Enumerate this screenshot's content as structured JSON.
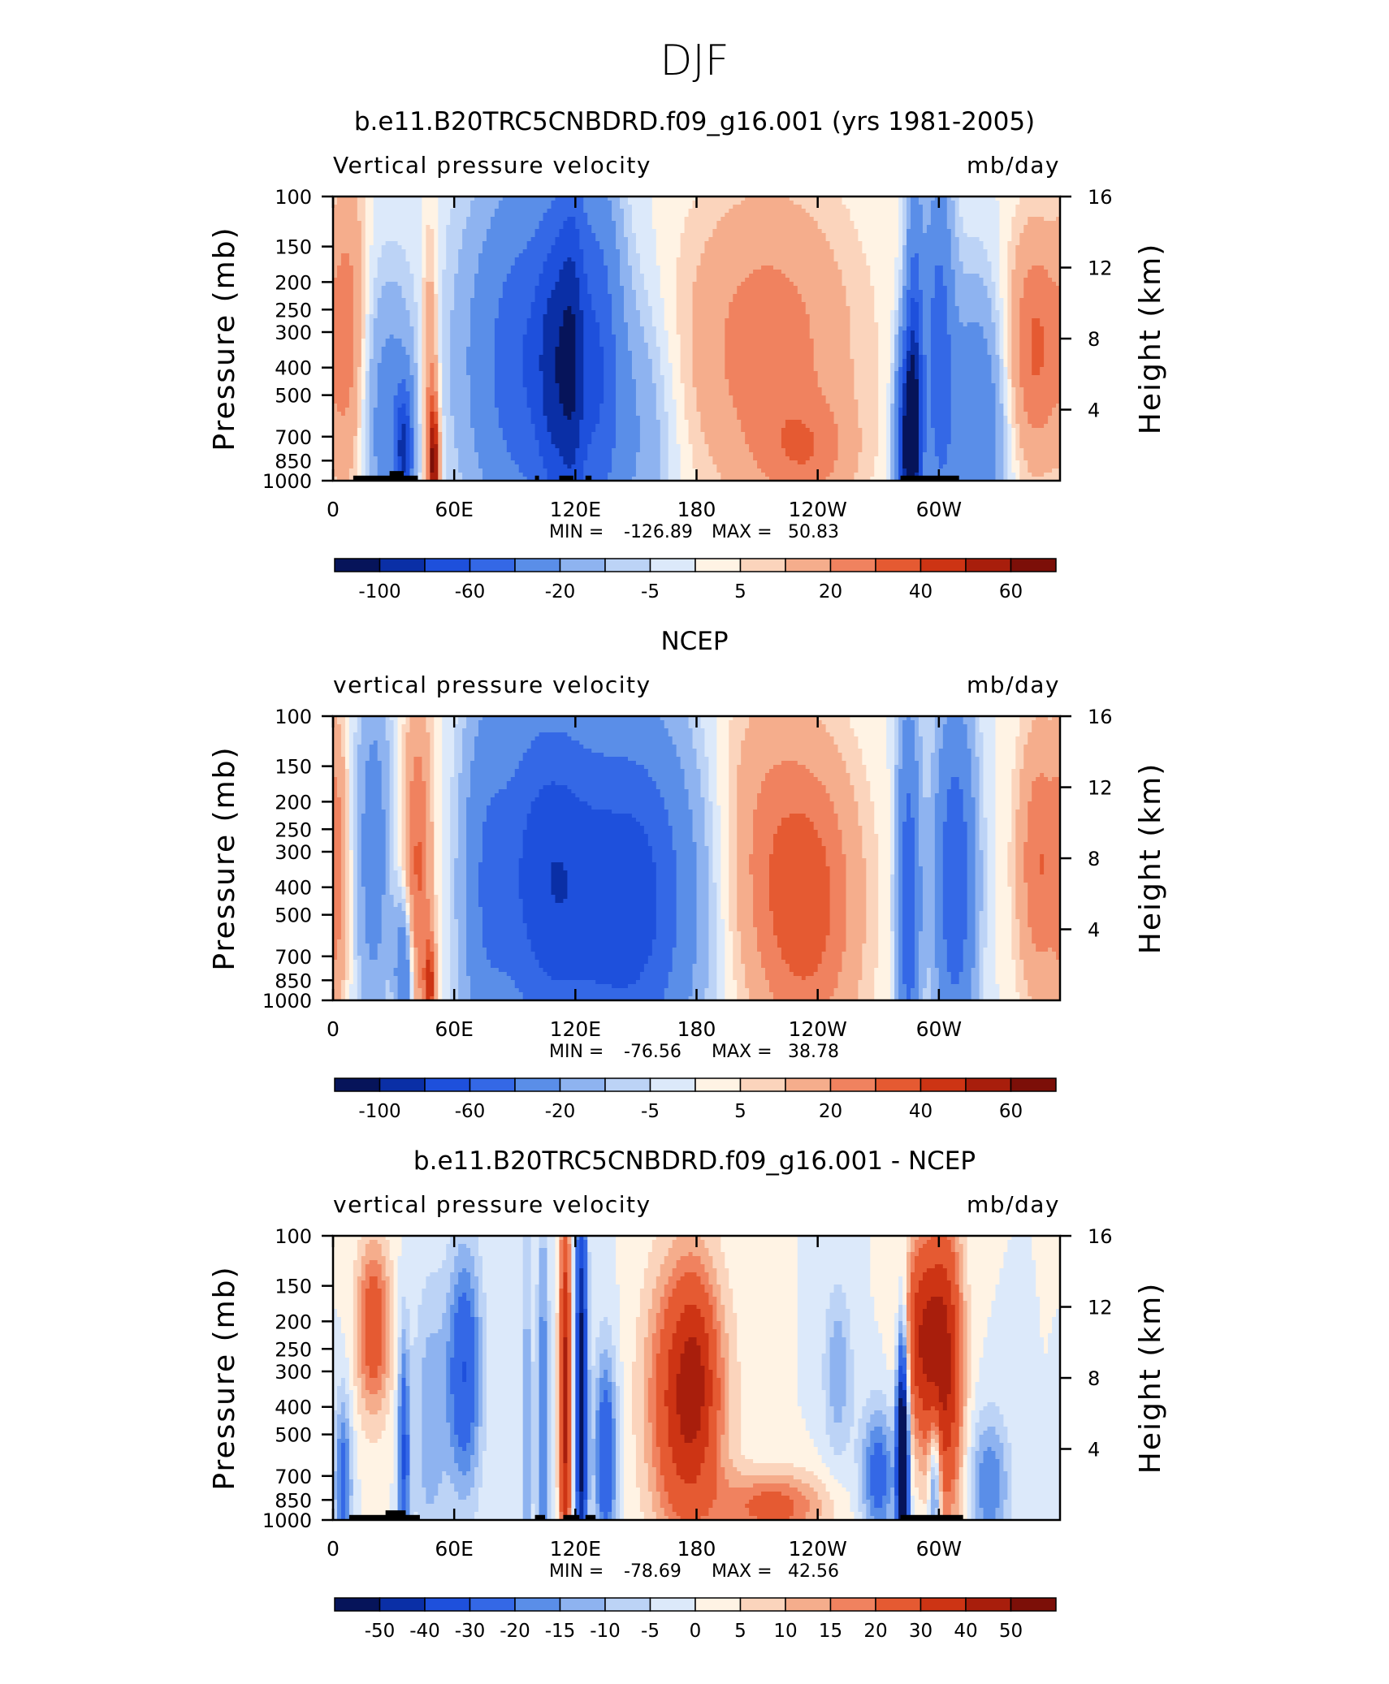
{
  "figure": {
    "title": "DJF"
  },
  "colors": {
    "scale": [
      "#06145a",
      "#0a2fa6",
      "#1e50dc",
      "#3468e6",
      "#5a8ee8",
      "#8eb3f0",
      "#bcd3f6",
      "#dce9fa",
      "#fff3e4",
      "#fbd4bc",
      "#f5ad8c",
      "#f0825f",
      "#e55a32",
      "#cd3414",
      "#a81e0c",
      "#7c0f08"
    ],
    "topography": "#000000"
  },
  "chart_data": [
    {
      "type": "heatmap",
      "title": "b.e11.B20TRC5CNBDRD.f09_g16.001 (yrs 1981-2005)",
      "variable_label": "Vertical pressure velocity",
      "units_label": "mb/day",
      "ylabel_left": "Pressure (mb)",
      "ylabel_right": "Height (km)",
      "x_ticks": [
        "0",
        "60E",
        "120E",
        "180",
        "120W",
        "60W"
      ],
      "x_tick_lon": [
        0,
        60,
        120,
        180,
        240,
        300
      ],
      "xlim": [
        0,
        360
      ],
      "pressure_ticks": [
        "100",
        "150",
        "200",
        "250",
        "300",
        "400",
        "500",
        "700",
        "850",
        "1000"
      ],
      "pressure_values": [
        100,
        150,
        200,
        250,
        300,
        400,
        500,
        700,
        850,
        1000
      ],
      "height_ticks": [
        "16",
        "12",
        "8",
        "4"
      ],
      "height_values": [
        16,
        12,
        8,
        4
      ],
      "stats": {
        "min_label": "MIN =",
        "min": "-126.89",
        "max_label": "MAX =",
        "max": "50.83"
      },
      "colorbar_labels": [
        "-100",
        "-60",
        "-20",
        "-5",
        "5",
        "20",
        "40",
        "60"
      ],
      "colorbar_levels": [
        -120,
        -100,
        -80,
        -60,
        -40,
        -20,
        -10,
        -5,
        0,
        5,
        10,
        20,
        30,
        40,
        50,
        60
      ],
      "colorbar_label_at_level": [
        -100,
        -60,
        -20,
        -5,
        5,
        20,
        40,
        60
      ],
      "features": [
        {
          "lon": 50,
          "sd_lon": 1.8,
          "p": 880,
          "sd_p": 0.35,
          "amp": 55
        },
        {
          "lon": 8,
          "sd_lon": 6,
          "p": 300,
          "sd_p": 1.0,
          "amp": 22
        },
        {
          "lon": 48,
          "sd_lon": 3,
          "p": 500,
          "sd_p": 0.9,
          "amp": 25
        },
        {
          "lon": 28,
          "sd_lon": 9,
          "p": 650,
          "sd_p": 0.8,
          "amp": -30
        },
        {
          "lon": 35,
          "sd_lon": 3,
          "p": 780,
          "sd_p": 0.35,
          "amp": -70
        },
        {
          "lon": 100,
          "sd_lon": 22,
          "p": 380,
          "sd_p": 1.0,
          "amp": -62
        },
        {
          "lon": 108,
          "sd_lon": 5,
          "p": 420,
          "sd_p": 0.9,
          "amp": -30
        },
        {
          "lon": 118,
          "sd_lon": 5,
          "p": 380,
          "sd_p": 1.2,
          "amp": -55
        },
        {
          "lon": 132,
          "sd_lon": 7,
          "p": 380,
          "sd_p": 1.1,
          "amp": -35
        },
        {
          "lon": 150,
          "sd_lon": 14,
          "p": 700,
          "sd_p": 0.8,
          "amp": -18
        },
        {
          "lon": 215,
          "sd_lon": 30,
          "p": 340,
          "sd_p": 0.9,
          "amp": 26
        },
        {
          "lon": 235,
          "sd_lon": 16,
          "p": 800,
          "sd_p": 0.3,
          "amp": 18
        },
        {
          "lon": 285,
          "sd_lon": 4,
          "p": 750,
          "sd_p": 0.6,
          "amp": -110
        },
        {
          "lon": 288,
          "sd_lon": 3,
          "p": 380,
          "sd_p": 1.0,
          "amp": -55
        },
        {
          "lon": 300,
          "sd_lon": 5,
          "p": 350,
          "sd_p": 1.0,
          "amp": -50
        },
        {
          "lon": 318,
          "sd_lon": 10,
          "p": 700,
          "sd_p": 0.8,
          "amp": -40
        },
        {
          "lon": 348,
          "sd_lon": 10,
          "p": 340,
          "sd_p": 0.7,
          "amp": 32
        }
      ],
      "topography": [
        {
          "lon0": 10,
          "lon1": 42,
          "top": 960
        },
        {
          "lon0": 28,
          "lon1": 35,
          "top": 925
        },
        {
          "lon0": 100,
          "lon1": 102,
          "top": 960
        },
        {
          "lon0": 112,
          "lon1": 119,
          "top": 960
        },
        {
          "lon0": 125,
          "lon1": 128,
          "top": 960
        },
        {
          "lon0": 281,
          "lon1": 310,
          "top": 960
        }
      ]
    },
    {
      "type": "heatmap",
      "title": "NCEP",
      "variable_label": "vertical pressure velocity",
      "units_label": "mb/day",
      "ylabel_left": "Pressure (mb)",
      "ylabel_right": "Height (km)",
      "x_ticks": [
        "0",
        "60E",
        "120E",
        "180",
        "120W",
        "60W"
      ],
      "x_tick_lon": [
        0,
        60,
        120,
        180,
        240,
        300
      ],
      "xlim": [
        0,
        360
      ],
      "pressure_ticks": [
        "100",
        "150",
        "200",
        "250",
        "300",
        "400",
        "500",
        "700",
        "850",
        "1000"
      ],
      "pressure_values": [
        100,
        150,
        200,
        250,
        300,
        400,
        500,
        700,
        850,
        1000
      ],
      "height_ticks": [
        "16",
        "12",
        "8",
        "4"
      ],
      "height_values": [
        16,
        12,
        8,
        4
      ],
      "stats": {
        "min_label": "MIN =",
        "min": "-76.56",
        "max_label": "MAX =",
        "max": "38.78"
      },
      "colorbar_labels": [
        "-100",
        "-60",
        "-20",
        "-5",
        "5",
        "20",
        "40",
        "60"
      ],
      "colorbar_levels": [
        -120,
        -100,
        -80,
        -60,
        -40,
        -20,
        -10,
        -5,
        0,
        5,
        10,
        20,
        30,
        40,
        50,
        60
      ],
      "colorbar_label_at_level": [
        -100,
        -60,
        -20,
        -5,
        5,
        20,
        40,
        60
      ],
      "features": [
        {
          "lon": 48,
          "sd_lon": 2,
          "p": 900,
          "sd_p": 0.3,
          "amp": 40
        },
        {
          "lon": 42,
          "sd_lon": 5,
          "p": 350,
          "sd_p": 1.0,
          "amp": 32
        },
        {
          "lon": 2,
          "sd_lon": 4,
          "p": 350,
          "sd_p": 0.9,
          "amp": 18
        },
        {
          "lon": 20,
          "sd_lon": 6,
          "p": 300,
          "sd_p": 1.0,
          "amp": -30
        },
        {
          "lon": 35,
          "sd_lon": 3,
          "p": 800,
          "sd_p": 0.4,
          "amp": -45
        },
        {
          "lon": 75,
          "sd_lon": 8,
          "p": 400,
          "sd_p": 1.2,
          "amp": -25
        },
        {
          "lon": 105,
          "sd_lon": 18,
          "p": 330,
          "sd_p": 1.0,
          "amp": -60
        },
        {
          "lon": 150,
          "sd_lon": 20,
          "p": 420,
          "sd_p": 1.0,
          "amp": -58
        },
        {
          "lon": 125,
          "sd_lon": 30,
          "p": 600,
          "sd_p": 1.0,
          "amp": -20
        },
        {
          "lon": 235,
          "sd_lon": 18,
          "p": 450,
          "sd_p": 0.9,
          "amp": 36
        },
        {
          "lon": 210,
          "sd_lon": 15,
          "p": 250,
          "sd_p": 1.0,
          "amp": 12
        },
        {
          "lon": 285,
          "sd_lon": 4,
          "p": 450,
          "sd_p": 1.1,
          "amp": -55
        },
        {
          "lon": 308,
          "sd_lon": 7,
          "p": 380,
          "sd_p": 1.0,
          "amp": -58
        },
        {
          "lon": 350,
          "sd_lon": 8,
          "p": 330,
          "sd_p": 0.8,
          "amp": 30
        }
      ],
      "topography": []
    },
    {
      "type": "heatmap",
      "title": "b.e11.B20TRC5CNBDRD.f09_g16.001 - NCEP",
      "variable_label": "vertical pressure velocity",
      "units_label": "mb/day",
      "ylabel_left": "Pressure (mb)",
      "ylabel_right": "Height (km)",
      "x_ticks": [
        "0",
        "60E",
        "120E",
        "180",
        "120W",
        "60W"
      ],
      "x_tick_lon": [
        0,
        60,
        120,
        180,
        240,
        300
      ],
      "xlim": [
        0,
        360
      ],
      "pressure_ticks": [
        "100",
        "150",
        "200",
        "250",
        "300",
        "400",
        "500",
        "700",
        "850",
        "1000"
      ],
      "pressure_values": [
        100,
        150,
        200,
        250,
        300,
        400,
        500,
        700,
        850,
        1000
      ],
      "height_ticks": [
        "16",
        "12",
        "8",
        "4"
      ],
      "height_values": [
        16,
        12,
        8,
        4
      ],
      "stats": {
        "min_label": "MIN =",
        "min": "-78.69",
        "max_label": "MAX =",
        "max": "42.56"
      },
      "colorbar_labels": [
        "-50",
        "-40",
        "-30",
        "-20",
        "-15",
        "-10",
        "-5",
        "0",
        "5",
        "10",
        "15",
        "20",
        "30",
        "40",
        "50"
      ],
      "colorbar_levels": [
        -60,
        -50,
        -40,
        -30,
        -20,
        -15,
        -10,
        -5,
        0,
        5,
        10,
        15,
        20,
        30,
        40,
        50
      ],
      "colorbar_label_at_level": [
        -50,
        -40,
        -30,
        -20,
        -15,
        -10,
        -5,
        0,
        5,
        10,
        15,
        20,
        30,
        40,
        50
      ],
      "features": [
        {
          "lon": 20,
          "sd_lon": 6,
          "p": 210,
          "sd_p": 0.5,
          "amp": 28
        },
        {
          "lon": 5,
          "sd_lon": 3,
          "p": 750,
          "sd_p": 0.5,
          "amp": -25
        },
        {
          "lon": 35,
          "sd_lon": 2,
          "p": 600,
          "sd_p": 0.7,
          "amp": -30
        },
        {
          "lon": 65,
          "sd_lon": 6,
          "p": 300,
          "sd_p": 0.7,
          "amp": -30
        },
        {
          "lon": 48,
          "sd_lon": 6,
          "p": 450,
          "sd_p": 0.8,
          "amp": -14
        },
        {
          "lon": 96,
          "sd_lon": 2,
          "p": 500,
          "sd_p": 1.3,
          "amp": -14
        },
        {
          "lon": 104,
          "sd_lon": 2,
          "p": 500,
          "sd_p": 1.3,
          "amp": -22
        },
        {
          "lon": 115,
          "sd_lon": 2,
          "p": 380,
          "sd_p": 1.2,
          "amp": 44
        },
        {
          "lon": 123,
          "sd_lon": 2,
          "p": 380,
          "sd_p": 1.2,
          "amp": -60
        },
        {
          "lon": 135,
          "sd_lon": 4,
          "p": 600,
          "sd_p": 0.6,
          "amp": -30
        },
        {
          "lon": 175,
          "sd_lon": 13,
          "p": 380,
          "sd_p": 0.8,
          "amp": 40
        },
        {
          "lon": 180,
          "sd_lon": 6,
          "p": 280,
          "sd_p": 0.5,
          "amp": 10
        },
        {
          "lon": 218,
          "sd_lon": 18,
          "p": 900,
          "sd_p": 0.2,
          "amp": 24
        },
        {
          "lon": 250,
          "sd_lon": 5,
          "p": 300,
          "sd_p": 0.5,
          "amp": -14
        },
        {
          "lon": 270,
          "sd_lon": 6,
          "p": 700,
          "sd_p": 0.4,
          "amp": -25
        },
        {
          "lon": 282,
          "sd_lon": 2,
          "p": 600,
          "sd_p": 0.7,
          "amp": -80
        },
        {
          "lon": 292,
          "sd_lon": 7,
          "p": 230,
          "sd_p": 0.6,
          "amp": 38
        },
        {
          "lon": 304,
          "sd_lon": 6,
          "p": 300,
          "sd_p": 0.9,
          "amp": 36
        },
        {
          "lon": 298,
          "sd_lon": 2,
          "p": 750,
          "sd_p": 0.4,
          "amp": -30
        },
        {
          "lon": 325,
          "sd_lon": 7,
          "p": 750,
          "sd_p": 0.4,
          "amp": -20
        }
      ],
      "topography": [
        {
          "lon0": 8,
          "lon1": 43,
          "top": 960
        },
        {
          "lon0": 26,
          "lon1": 36,
          "top": 925
        },
        {
          "lon0": 100,
          "lon1": 105,
          "top": 960
        },
        {
          "lon0": 114,
          "lon1": 122,
          "top": 960
        },
        {
          "lon0": 125,
          "lon1": 130,
          "top": 960
        },
        {
          "lon0": 281,
          "lon1": 312,
          "top": 960
        }
      ]
    }
  ]
}
